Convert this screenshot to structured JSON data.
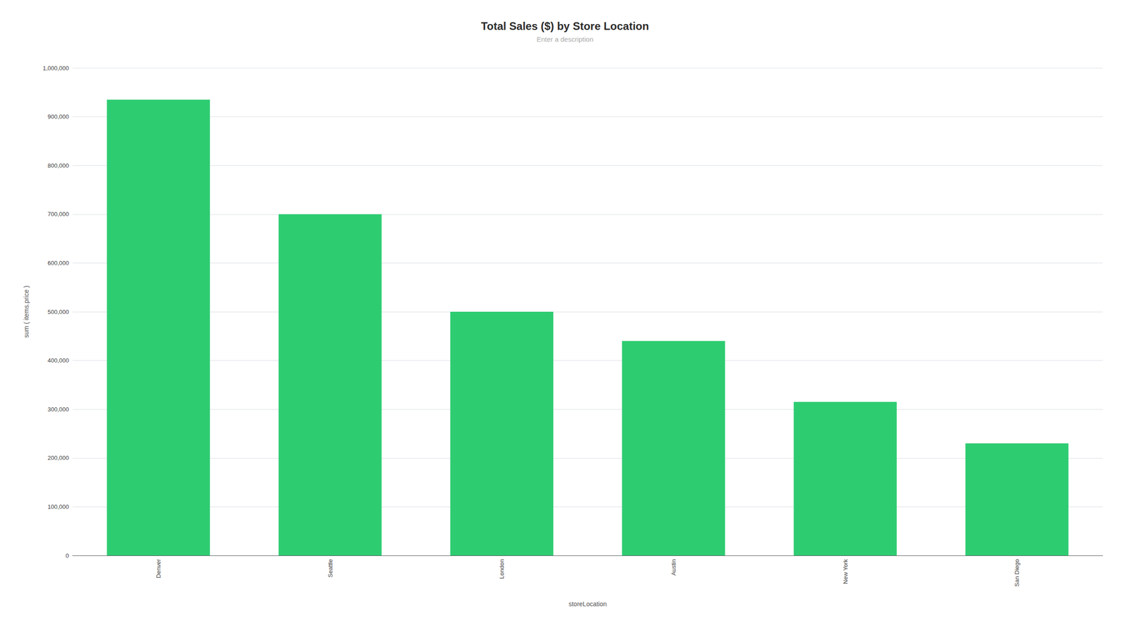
{
  "chart_data": {
    "type": "bar",
    "title": "Total Sales ($) by Store Location",
    "subtitle": "Enter a description",
    "xlabel": "storeLocation",
    "ylabel": "sum ( items.price )",
    "categories": [
      "Denver",
      "Seattle",
      "London",
      "Austin",
      "New York",
      "San Diego"
    ],
    "values": [
      935000,
      700000,
      500000,
      440000,
      315000,
      230000
    ],
    "color": "#2ecc71",
    "ylim": [
      0,
      1000000
    ],
    "yticks": [
      0,
      {
        "value": 100000,
        "label": "100,000"
      },
      {
        "value": 200000,
        "label": "200,000"
      },
      {
        "value": 300000,
        "label": "300,000"
      },
      {
        "value": 400000,
        "label": "400,000"
      },
      {
        "value": 500000,
        "label": "500,000"
      },
      {
        "value": 600000,
        "label": "600,000"
      },
      {
        "value": 700000,
        "label": "700,000"
      },
      {
        "value": 800000,
        "label": "800,000"
      },
      {
        "value": 900000,
        "label": "900,000"
      },
      {
        "value": 1000000,
        "label": "1,000,000"
      }
    ],
    "grid": true
  }
}
